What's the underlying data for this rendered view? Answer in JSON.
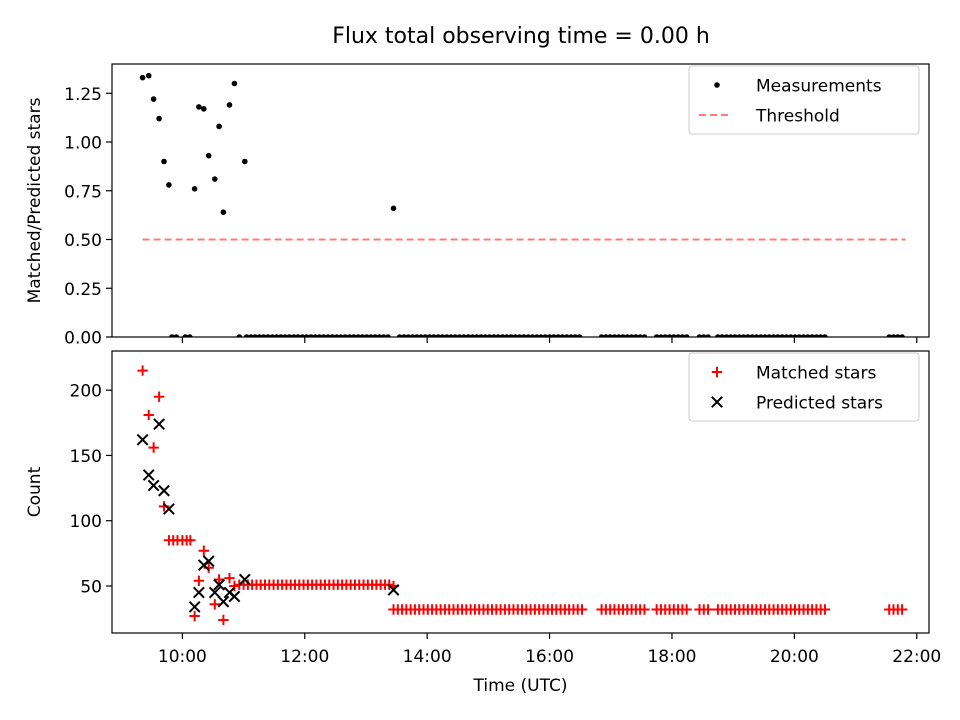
{
  "figure": {
    "title": "Flux total observing time = 0.00 h"
  },
  "chart_data": [
    {
      "type": "scatter",
      "panel": "top",
      "xlabel": "",
      "ylabel": "Matched/Predicted stars",
      "xlim": [
        8.85,
        22.2
      ],
      "ylim": [
        0.0,
        1.4
      ],
      "yticks": [
        0.0,
        0.25,
        0.5,
        0.75,
        1.0,
        1.25
      ],
      "ytick_labels": [
        "0.00",
        "0.25",
        "0.50",
        "0.75",
        "1.00",
        "1.25"
      ],
      "xticks": [
        10,
        12,
        14,
        16,
        18,
        20,
        22
      ],
      "xtick_labels": [],
      "legend_position": "upper right",
      "series": [
        {
          "name": "Measurements",
          "kind": "points",
          "color": "#000000",
          "points": [
            [
              9.35,
              1.33
            ],
            [
              9.45,
              1.34
            ],
            [
              9.53,
              1.22
            ],
            [
              9.62,
              1.12
            ],
            [
              9.7,
              0.9
            ],
            [
              9.78,
              0.78
            ],
            [
              10.2,
              0.76
            ],
            [
              10.27,
              1.18
            ],
            [
              10.35,
              1.17
            ],
            [
              10.43,
              0.93
            ],
            [
              10.53,
              0.81
            ],
            [
              10.6,
              1.08
            ],
            [
              10.67,
              0.64
            ],
            [
              10.77,
              1.19
            ],
            [
              10.85,
              1.3
            ],
            [
              11.02,
              0.9
            ],
            [
              13.45,
              0.66
            ]
          ],
          "zero_ranges": [
            [
              9.83,
              9.95
            ],
            [
              10.05,
              10.15
            ],
            [
              10.93,
              10.97
            ],
            [
              11.05,
              13.4
            ],
            [
              13.55,
              16.55
            ],
            [
              16.85,
              17.6
            ],
            [
              17.75,
              18.3
            ],
            [
              18.45,
              18.65
            ],
            [
              18.75,
              20.55
            ],
            [
              21.55,
              21.82
            ]
          ]
        },
        {
          "name": "Threshold",
          "kind": "dashed-line",
          "color": "#ff7b7b",
          "x": [
            9.35,
            21.82
          ],
          "y": [
            0.5,
            0.5
          ]
        }
      ]
    },
    {
      "type": "scatter",
      "panel": "bottom",
      "xlabel": "Time (UTC)",
      "ylabel": "Count",
      "xlim": [
        8.85,
        22.2
      ],
      "ylim": [
        14,
        230
      ],
      "yticks": [
        50,
        100,
        150,
        200
      ],
      "ytick_labels": [
        "50",
        "100",
        "150",
        "200"
      ],
      "xticks": [
        10,
        12,
        14,
        16,
        18,
        20,
        22
      ],
      "xtick_labels": [
        "10:00",
        "12:00",
        "14:00",
        "16:00",
        "18:00",
        "20:00",
        "22:00"
      ],
      "legend_position": "upper right",
      "series": [
        {
          "name": "Matched stars",
          "marker": "plus",
          "color": "#ff0000",
          "points": [
            [
              9.35,
              215
            ],
            [
              9.45,
              181
            ],
            [
              9.53,
              156
            ],
            [
              9.62,
              195
            ],
            [
              9.7,
              111
            ],
            [
              9.78,
              85
            ],
            [
              9.85,
              85
            ],
            [
              9.92,
              85
            ],
            [
              10.0,
              85
            ],
            [
              10.07,
              85
            ],
            [
              10.13,
              85
            ],
            [
              10.2,
              27
            ],
            [
              10.27,
              54
            ],
            [
              10.35,
              77
            ],
            [
              10.43,
              64
            ],
            [
              10.53,
              36
            ],
            [
              10.6,
              55
            ],
            [
              10.67,
              24
            ],
            [
              10.77,
              56
            ],
            [
              10.85,
              50
            ],
            [
              13.45,
              50
            ]
          ],
          "flat_ranges": [
            {
              "from": 10.93,
              "to": 13.4,
              "value": 51
            },
            {
              "from": 13.45,
              "to": 16.55,
              "value": 32
            },
            {
              "from": 16.85,
              "to": 17.6,
              "value": 32
            },
            {
              "from": 17.75,
              "to": 18.3,
              "value": 32
            },
            {
              "from": 18.45,
              "to": 18.65,
              "value": 32
            },
            {
              "from": 18.75,
              "to": 20.55,
              "value": 32
            },
            {
              "from": 21.55,
              "to": 21.82,
              "value": 32
            }
          ]
        },
        {
          "name": "Predicted stars",
          "marker": "x",
          "color": "#000000",
          "points": [
            [
              9.35,
              162
            ],
            [
              9.45,
              135
            ],
            [
              9.53,
              127
            ],
            [
              9.62,
              174
            ],
            [
              9.7,
              123
            ],
            [
              9.78,
              109
            ],
            [
              10.2,
              34
            ],
            [
              10.27,
              45
            ],
            [
              10.35,
              66
            ],
            [
              10.43,
              69
            ],
            [
              10.53,
              45
            ],
            [
              10.6,
              51
            ],
            [
              10.67,
              38
            ],
            [
              10.77,
              45
            ],
            [
              10.85,
              42
            ],
            [
              11.02,
              55
            ],
            [
              13.45,
              47
            ]
          ]
        }
      ]
    }
  ]
}
